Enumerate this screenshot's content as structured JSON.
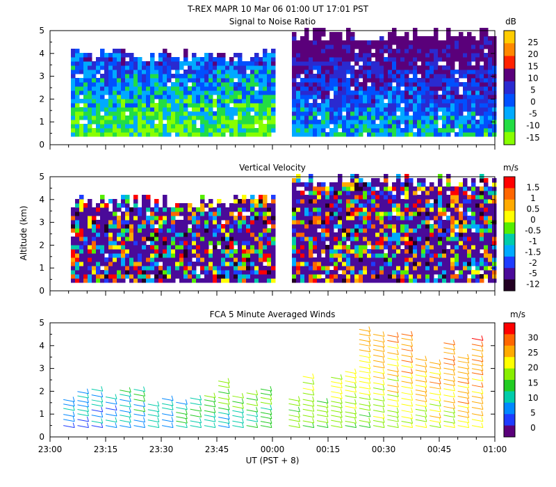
{
  "figure": {
    "title": "T-REX   MAPR 10 Mar 06   01:00 UT   17:01   PST",
    "xlabel": "UT  (PST + 8)",
    "ylabel": "Altitude (km)"
  },
  "chart_data": [
    {
      "type": "heatmap",
      "title": "Signal to Noise Ratio",
      "unit": "dB",
      "x_ticks": [
        "23:00",
        "23:15",
        "23:30",
        "23:45",
        "00:00",
        "00:15",
        "00:30",
        "00:45",
        "01:00"
      ],
      "ylim": [
        0,
        5
      ],
      "y_ticks": [
        "0",
        "1",
        "2",
        "3",
        "4",
        "5"
      ],
      "colorbar": {
        "labels": [
          "25",
          "20",
          "15",
          "10",
          "5",
          "0",
          "-5",
          "-10",
          "-15"
        ],
        "colors": [
          "#ffcc00",
          "#ff8800",
          "#ff2200",
          "#5a007a",
          "#2a2ad0",
          "#0050ff",
          "#00aaff",
          "#22dd44",
          "#88ff00"
        ]
      }
    },
    {
      "type": "heatmap",
      "title": "Vertical Velocity",
      "unit": "m/s",
      "x_ticks": [
        "23:00",
        "23:15",
        "23:30",
        "23:45",
        "00:00",
        "00:15",
        "00:30",
        "00:45",
        "01:00"
      ],
      "ylim": [
        0,
        5
      ],
      "y_ticks": [
        "0",
        "1",
        "2",
        "3",
        "4",
        "5"
      ],
      "colorbar": {
        "labels": [
          "1.5",
          "1",
          "0.5",
          "0",
          "-0.5",
          "-1",
          "-1.5",
          "-2",
          "-5",
          "-12"
        ],
        "colors": [
          "#ff0000",
          "#ff6600",
          "#ffaa00",
          "#ffff00",
          "#55ee00",
          "#00ccaa",
          "#00aaff",
          "#1e3cff",
          "#4a0a99",
          "#220022"
        ]
      }
    },
    {
      "type": "wind-barbs",
      "title": "FCA 5 Minute Averaged Winds",
      "unit": "m/s",
      "x_ticks": [
        "23:00",
        "23:15",
        "23:30",
        "23:45",
        "00:00",
        "00:15",
        "00:30",
        "00:45",
        "01:00"
      ],
      "ylim": [
        0,
        5
      ],
      "y_ticks": [
        "0",
        "1",
        "2",
        "3",
        "4",
        "5"
      ],
      "colorbar": {
        "labels": [
          "30",
          "25",
          "20",
          "15",
          "10",
          "5",
          "0"
        ],
        "colors": [
          "#ff0000",
          "#ff6600",
          "#ffaa00",
          "#ffff00",
          "#88ee00",
          "#22cc22",
          "#00ccaa",
          "#0088ff",
          "#1e3cff",
          "#5a007a"
        ]
      }
    }
  ]
}
